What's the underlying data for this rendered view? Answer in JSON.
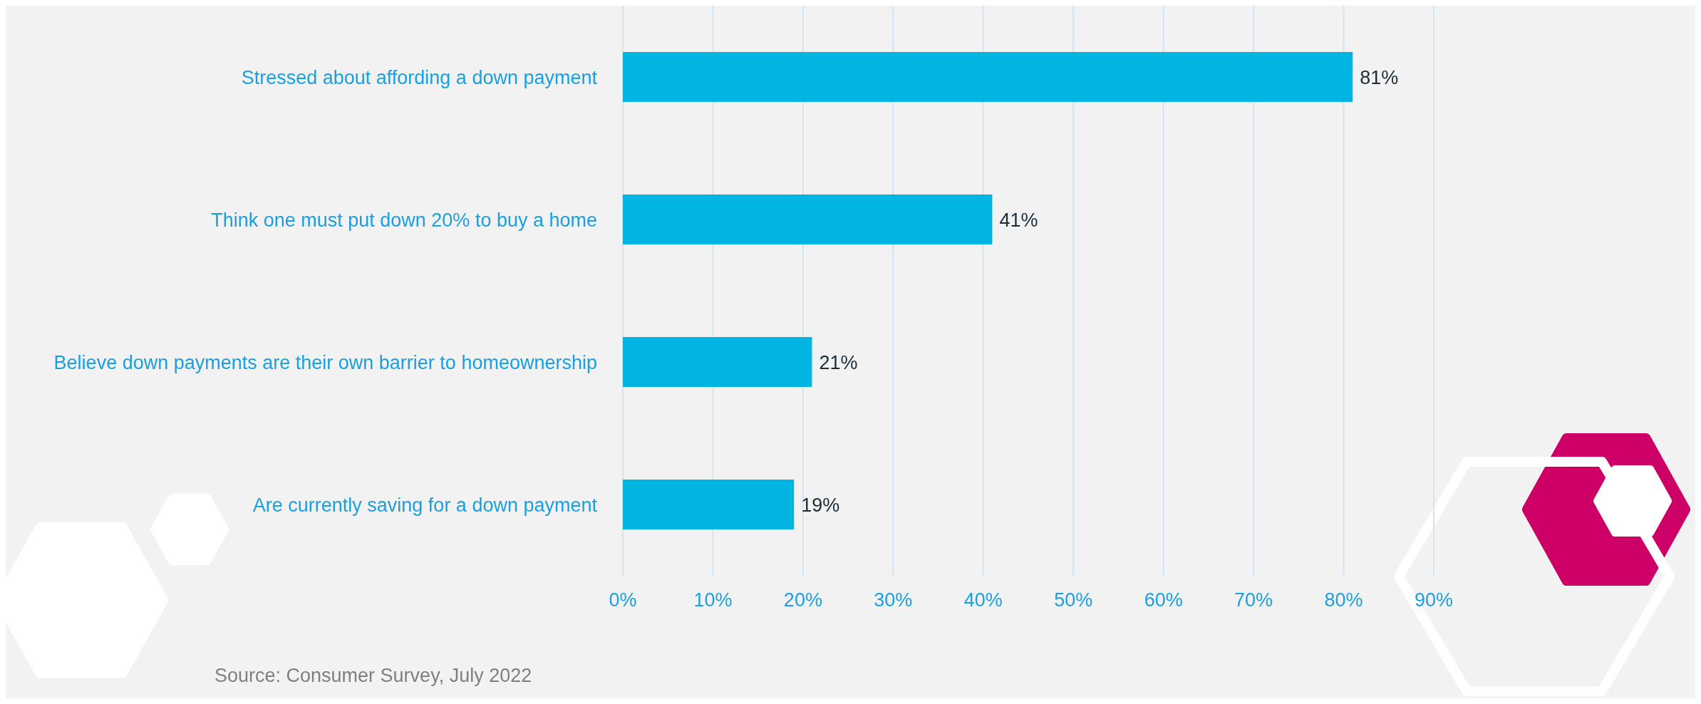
{
  "chart_data": {
    "type": "bar",
    "orientation": "horizontal",
    "categories": [
      "Stressed about affording a down payment",
      "Think one must put down 20% to buy a home",
      "Believe down payments are their own barrier to homeownership",
      "Are currently saving for a down payment"
    ],
    "values": [
      81,
      41,
      21,
      19
    ],
    "color": "#00b5e2",
    "xlim": [
      0,
      90
    ],
    "xticks": [
      {
        "value": 0,
        "label": "0%"
      },
      {
        "value": 10,
        "label": "10%"
      },
      {
        "value": 20,
        "label": "20%"
      },
      {
        "value": 30,
        "label": "30%"
      },
      {
        "value": 40,
        "label": "40%"
      },
      {
        "value": 50,
        "label": "50%"
      },
      {
        "value": 60,
        "label": "60%"
      },
      {
        "value": 70,
        "label": "70%"
      },
      {
        "value": 80,
        "label": "80%"
      },
      {
        "value": 90,
        "label": "90%"
      }
    ],
    "grid": "x",
    "value_labels": [
      "81%",
      "41%",
      "21%",
      "19%"
    ],
    "annotations": [
      "Source: Consumer Survey, July 2022"
    ]
  }
}
